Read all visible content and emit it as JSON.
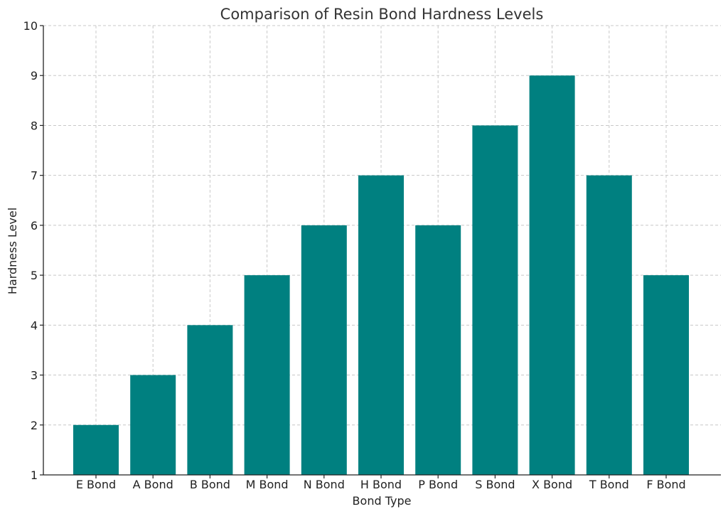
{
  "chart_data": {
    "type": "bar",
    "title": "Comparison of Resin Bond Hardness Levels",
    "xlabel": "Bond Type",
    "ylabel": "Hardness Level",
    "categories": [
      "E Bond",
      "A Bond",
      "B Bond",
      "M Bond",
      "N Bond",
      "H Bond",
      "P Bond",
      "S Bond",
      "X Bond",
      "T Bond",
      "F Bond"
    ],
    "values": [
      2,
      3,
      4,
      5,
      6,
      7,
      6,
      8,
      9,
      7,
      5
    ],
    "ylim": [
      1,
      10
    ],
    "yticks": [
      "1",
      "2",
      "3",
      "4",
      "5",
      "6",
      "7",
      "8",
      "9",
      "10"
    ],
    "grid": true,
    "bar_color": "#008080"
  }
}
